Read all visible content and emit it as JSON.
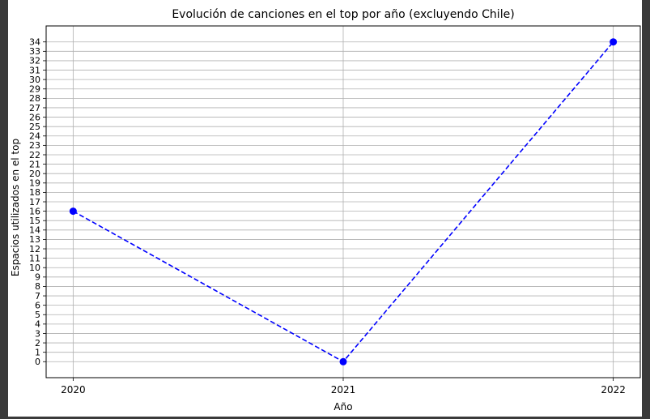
{
  "colors": {
    "line": "#0000ff",
    "grid": "#b0b0b0",
    "frame": "#000000",
    "text": "#000000",
    "background": "#ffffff",
    "window_edge": "#3a3a3a"
  },
  "chart_data": {
    "type": "line",
    "title": "Evolución de canciones en el top por año (excluyendo Chile)",
    "xlabel": "Año",
    "ylabel": "Espacios utilizados en el top",
    "x": [
      "2020",
      "2021",
      "2022"
    ],
    "series": [
      {
        "values": [
          16,
          0,
          34
        ],
        "line_style": "dashed",
        "marker": "circle",
        "color": "#0000ff"
      }
    ],
    "ylim": [
      -1.7,
      35.7
    ],
    "yticks": [
      0,
      1,
      2,
      3,
      4,
      5,
      6,
      7,
      8,
      9,
      10,
      11,
      12,
      13,
      14,
      15,
      16,
      17,
      18,
      19,
      20,
      21,
      22,
      23,
      24,
      25,
      26,
      27,
      28,
      29,
      30,
      31,
      32,
      33,
      34
    ],
    "grid": true
  }
}
